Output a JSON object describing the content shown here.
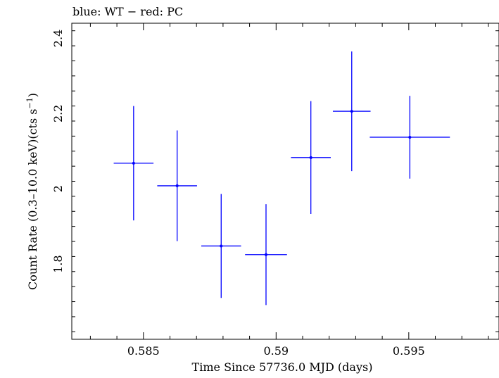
{
  "chart_data": {
    "type": "scatter",
    "title": "blue: WT − red: PC",
    "xlabel": "Time Since 57736.0 MJD (days)",
    "ylabel_main": "Count Rate (0.3–10.0 keV)(cts s",
    "ylabel_sup": "−1",
    "ylabel_close": ")",
    "xlim": [
      0.5823,
      0.5984
    ],
    "ylim": [
      1.6,
      2.44
    ],
    "x_ticks": [
      {
        "value": 0.585,
        "label": "0.585"
      },
      {
        "value": 0.59,
        "label": "0.59"
      },
      {
        "value": 0.595,
        "label": "0.595"
      }
    ],
    "y_ticks": [
      {
        "value": 1.8,
        "label": "1.8"
      },
      {
        "value": 2.0,
        "label": "2"
      },
      {
        "value": 2.2,
        "label": "2.2"
      },
      {
        "value": 2.4,
        "label": "2.4"
      }
    ],
    "series": [
      {
        "name": "WT",
        "color": "#0000ff",
        "points": [
          {
            "x": 0.58463,
            "y": 2.068,
            "xerr": 0.00075,
            "yerr": 0.152
          },
          {
            "x": 0.58627,
            "y": 2.008,
            "xerr": 0.00075,
            "yerr": 0.147
          },
          {
            "x": 0.58793,
            "y": 1.848,
            "xerr": 0.00075,
            "yerr": 0.138
          },
          {
            "x": 0.58962,
            "y": 1.825,
            "xerr": 0.00079,
            "yerr": 0.134
          },
          {
            "x": 0.59131,
            "y": 2.083,
            "xerr": 0.00075,
            "yerr": 0.15
          },
          {
            "x": 0.59285,
            "y": 2.206,
            "xerr": 0.00071,
            "yerr": 0.159
          },
          {
            "x": 0.59504,
            "y": 2.137,
            "xerr": 0.00151,
            "yerr": 0.11
          }
        ]
      }
    ]
  }
}
